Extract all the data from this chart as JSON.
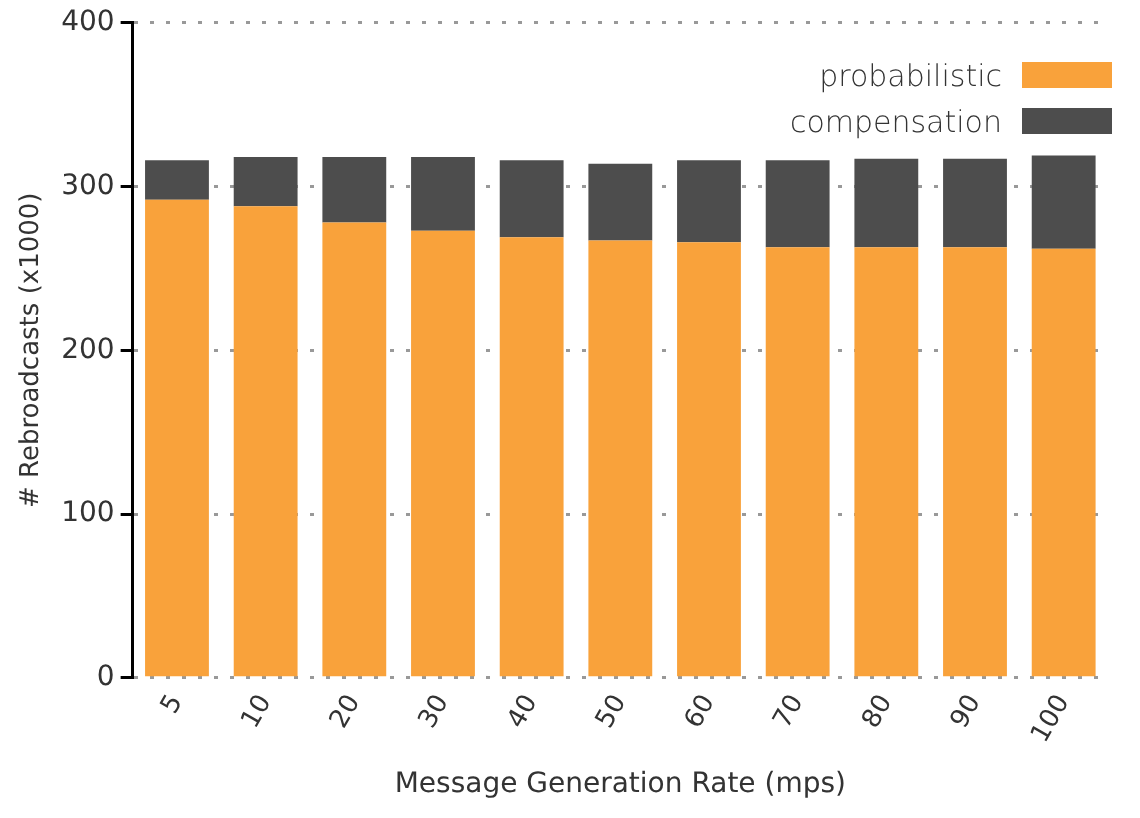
{
  "chart_data": {
    "type": "bar",
    "stacked": true,
    "xlabel": "Message Generation Rate (mps)",
    "ylabel": "# Rebroadcasts (x1000)",
    "categories": [
      "5",
      "10",
      "20",
      "30",
      "40",
      "50",
      "60",
      "70",
      "80",
      "90",
      "100"
    ],
    "series": [
      {
        "name": "probabilistic",
        "color": "#f9a23b",
        "values": [
          292,
          288,
          278,
          273,
          269,
          267,
          266,
          263,
          263,
          263,
          262
        ]
      },
      {
        "name": "compensation",
        "color": "#4d4d4d",
        "values": [
          24,
          30,
          40,
          45,
          47,
          47,
          50,
          53,
          54,
          54,
          57
        ]
      }
    ],
    "ylim": [
      0,
      400
    ],
    "yticks": [
      0,
      100,
      200,
      300,
      400
    ],
    "grid": "y",
    "legend": "top right"
  }
}
